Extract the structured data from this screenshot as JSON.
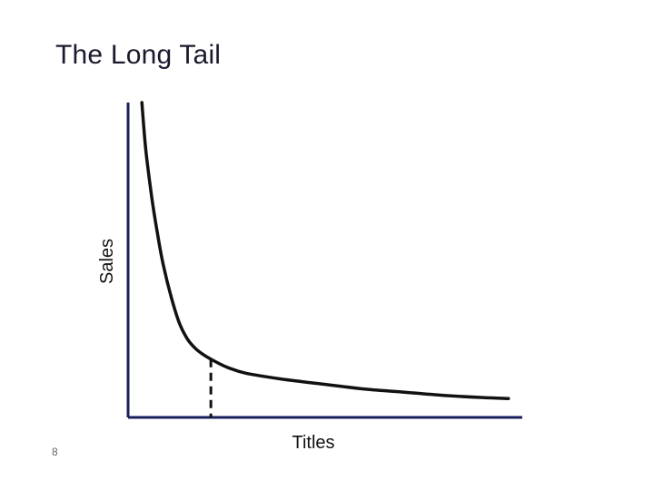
{
  "slide": {
    "title": "The Long Tail",
    "page_number": "8"
  },
  "chart_data": {
    "type": "line",
    "xlabel": "Titles",
    "ylabel": "Sales",
    "xlim": [
      0,
      100
    ],
    "ylim": [
      0,
      100
    ],
    "ticks_shown": false,
    "grid": false,
    "divider_x": 21,
    "series": [
      {
        "points": [
          [
            3.5,
            100
          ],
          [
            4.5,
            85
          ],
          [
            6,
            70
          ],
          [
            7.5,
            58
          ],
          [
            9,
            48
          ],
          [
            11,
            38
          ],
          [
            13,
            30
          ],
          [
            15,
            25
          ],
          [
            17,
            22
          ],
          [
            19,
            20
          ],
          [
            21,
            18.5
          ],
          [
            25,
            16
          ],
          [
            30,
            14
          ],
          [
            40,
            12
          ],
          [
            50,
            10.5
          ],
          [
            60,
            9
          ],
          [
            70,
            8
          ],
          [
            80,
            7
          ],
          [
            90,
            6.3
          ],
          [
            96.5,
            6
          ]
        ]
      }
    ],
    "colors": {
      "axis": "#1b1f5e",
      "curve": "#111111",
      "divider": "#111111"
    }
  }
}
